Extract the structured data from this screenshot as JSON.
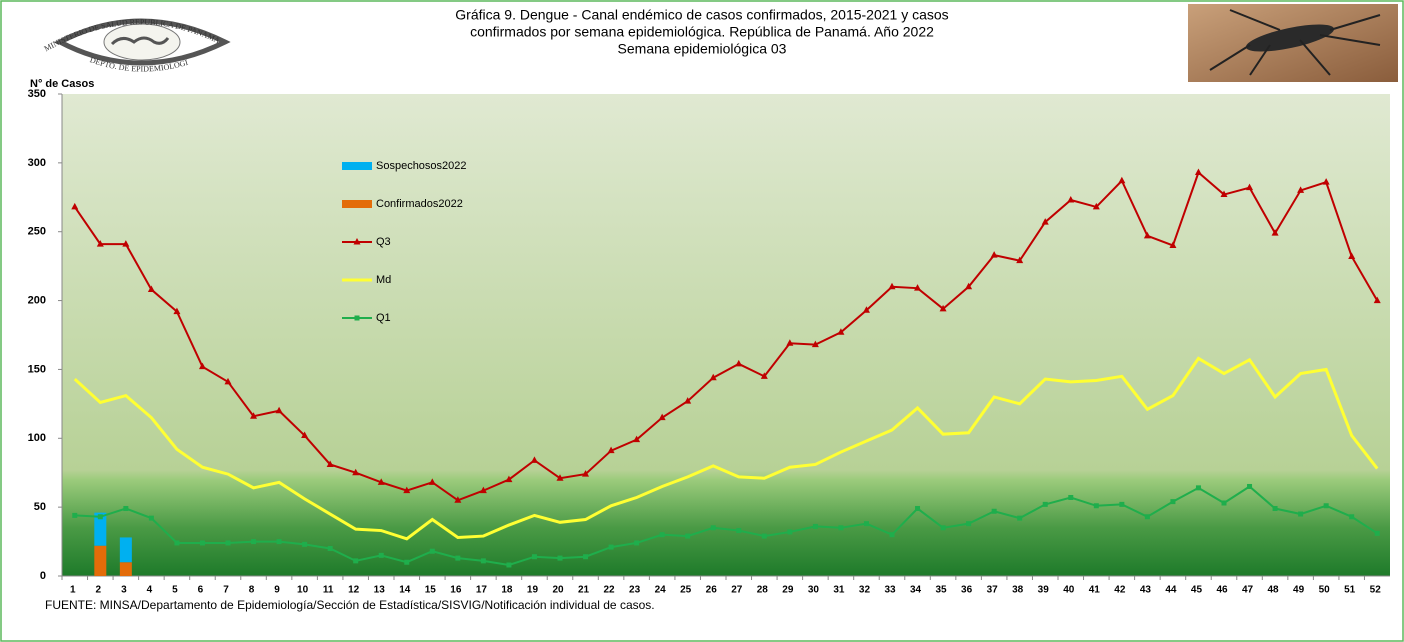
{
  "chart_data": {
    "type": "combo",
    "title": [
      "Gráfica 9. Dengue - Canal endémico de casos confirmados, 2015-2021 y casos",
      "confirmados por semana epidemiológica. República de Panamá. Año 2022",
      "Semana epidemiológica 03"
    ],
    "ylabel": "N° de Casos",
    "source": "FUENTE: MINSA/Departamento de Epidemiología/Sección de Estadística/SISVIG/Notificación individual de casos.",
    "categories": [
      1,
      2,
      3,
      4,
      5,
      6,
      7,
      8,
      9,
      10,
      11,
      12,
      13,
      14,
      15,
      16,
      17,
      18,
      19,
      20,
      21,
      22,
      23,
      24,
      25,
      26,
      27,
      28,
      29,
      30,
      31,
      32,
      33,
      34,
      35,
      36,
      37,
      38,
      39,
      40,
      41,
      42,
      43,
      44,
      45,
      46,
      47,
      48,
      49,
      50,
      51,
      52
    ],
    "ylim": [
      0,
      350
    ],
    "yticks": [
      0,
      50,
      100,
      150,
      200,
      250,
      300,
      350
    ],
    "series": [
      {
        "name": "Sospechosos2022",
        "type": "bar",
        "color": "#00b0f0",
        "values": [
          0,
          24,
          18,
          null,
          null,
          null,
          null,
          null,
          null,
          null,
          null,
          null,
          null,
          null,
          null,
          null,
          null,
          null,
          null,
          null,
          null,
          null,
          null,
          null,
          null,
          null,
          null,
          null,
          null,
          null,
          null,
          null,
          null,
          null,
          null,
          null,
          null,
          null,
          null,
          null,
          null,
          null,
          null,
          null,
          null,
          null,
          null,
          null,
          null,
          null,
          null,
          null
        ]
      },
      {
        "name": "Confirmados2022",
        "type": "bar",
        "color": "#e36c09",
        "values": [
          0,
          22,
          10,
          null,
          null,
          null,
          null,
          null,
          null,
          null,
          null,
          null,
          null,
          null,
          null,
          null,
          null,
          null,
          null,
          null,
          null,
          null,
          null,
          null,
          null,
          null,
          null,
          null,
          null,
          null,
          null,
          null,
          null,
          null,
          null,
          null,
          null,
          null,
          null,
          null,
          null,
          null,
          null,
          null,
          null,
          null,
          null,
          null,
          null,
          null,
          null,
          null
        ]
      },
      {
        "name": "Q3",
        "type": "line",
        "color": "#c00000",
        "marker": "triangle",
        "values": [
          268,
          241,
          241,
          208,
          192,
          152,
          141,
          116,
          120,
          102,
          81,
          75,
          68,
          62,
          68,
          55,
          62,
          70,
          84,
          71,
          74,
          91,
          99,
          115,
          127,
          144,
          154,
          145,
          169,
          168,
          177,
          193,
          210,
          209,
          194,
          210,
          233,
          229,
          257,
          273,
          268,
          287,
          247,
          240,
          293,
          277,
          282,
          249,
          280,
          286,
          232,
          200
        ]
      },
      {
        "name": "Md",
        "type": "line",
        "color": "#ffff33",
        "marker": "none",
        "values": [
          143,
          126,
          131,
          115,
          92,
          79,
          74,
          64,
          68,
          56,
          45,
          34,
          33,
          27,
          41,
          28,
          29,
          37,
          44,
          39,
          41,
          51,
          57,
          65,
          72,
          80,
          72,
          71,
          79,
          81,
          90,
          98,
          106,
          122,
          103,
          104,
          130,
          125,
          143,
          141,
          142,
          145,
          121,
          131,
          158,
          147,
          157,
          130,
          147,
          150,
          102,
          78
        ]
      },
      {
        "name": "Q1",
        "type": "line",
        "color": "#1fae4c",
        "marker": "square",
        "values": [
          44,
          43,
          49,
          42,
          24,
          24,
          24,
          25,
          25,
          23,
          20,
          11,
          15,
          10,
          18,
          13,
          11,
          8,
          14,
          13,
          14,
          21,
          24,
          30,
          29,
          35,
          33,
          29,
          32,
          36,
          35,
          38,
          30,
          49,
          35,
          38,
          47,
          42,
          52,
          57,
          51,
          52,
          43,
          54,
          64,
          53,
          65,
          49,
          45,
          51,
          43,
          31
        ]
      }
    ]
  },
  "logo": {
    "top": "MINISTERIO DE SALUD   REPUBLICA DE PANAMA",
    "bottom": "DEPTO. DE EPIDEMIOLOGIA"
  }
}
